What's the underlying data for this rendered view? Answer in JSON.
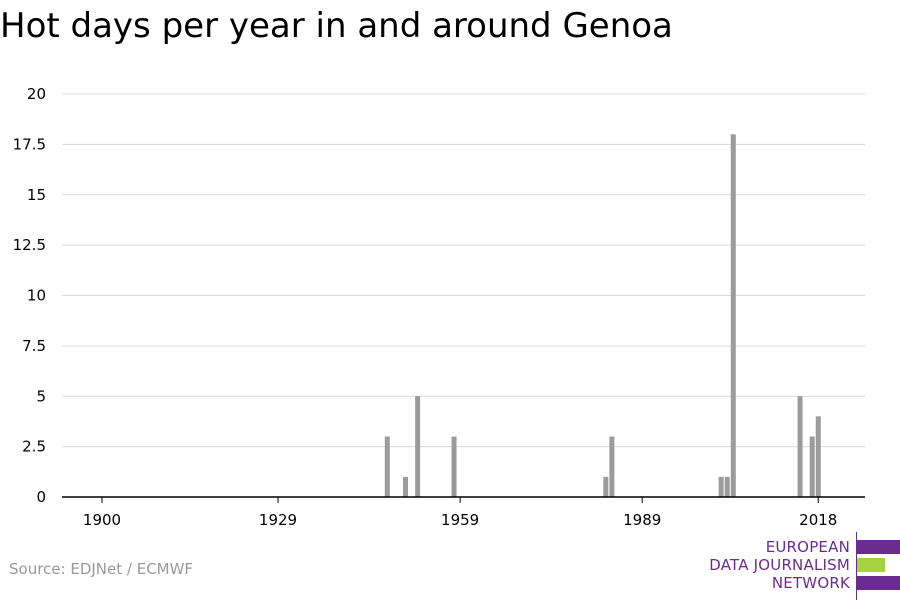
{
  "title": "Hot days per year in and around Genoa",
  "source": "Source: EDJNet / ECMWF",
  "logo": {
    "lines": [
      "EUROPEAN",
      "DATA JOURNALISM",
      "NETWORK"
    ],
    "colors": {
      "purple": "#6b2c8f",
      "green": "#a4d33c"
    }
  },
  "colors": {
    "bar": "#9b9b9b",
    "grid": "#d9d9d9",
    "axis": "#000000"
  },
  "chart_data": {
    "type": "bar",
    "xlabel": "",
    "ylabel": "",
    "x_range": [
      1900,
      2018
    ],
    "ylim": [
      0,
      20
    ],
    "grid": true,
    "x_ticks": [
      1900,
      1929,
      1959,
      1989,
      2018
    ],
    "y_ticks": [
      0,
      2.5,
      5,
      7.5,
      10,
      12.5,
      15,
      17.5,
      20
    ],
    "y_tick_labels": [
      "0",
      "2.5",
      "5",
      "7.5",
      "10",
      "12.5",
      "15",
      "17.5",
      "20"
    ],
    "series": [
      {
        "points": [
          {
            "year": 1947,
            "value": 3
          },
          {
            "year": 1950,
            "value": 1
          },
          {
            "year": 1952,
            "value": 5
          },
          {
            "year": 1958,
            "value": 3
          },
          {
            "year": 1983,
            "value": 1
          },
          {
            "year": 1984,
            "value": 3
          },
          {
            "year": 2002,
            "value": 1
          },
          {
            "year": 2003,
            "value": 1
          },
          {
            "year": 2004,
            "value": 18
          },
          {
            "year": 2015,
            "value": 5
          },
          {
            "year": 2017,
            "value": 3
          },
          {
            "year": 2018,
            "value": 4
          }
        ]
      }
    ]
  }
}
